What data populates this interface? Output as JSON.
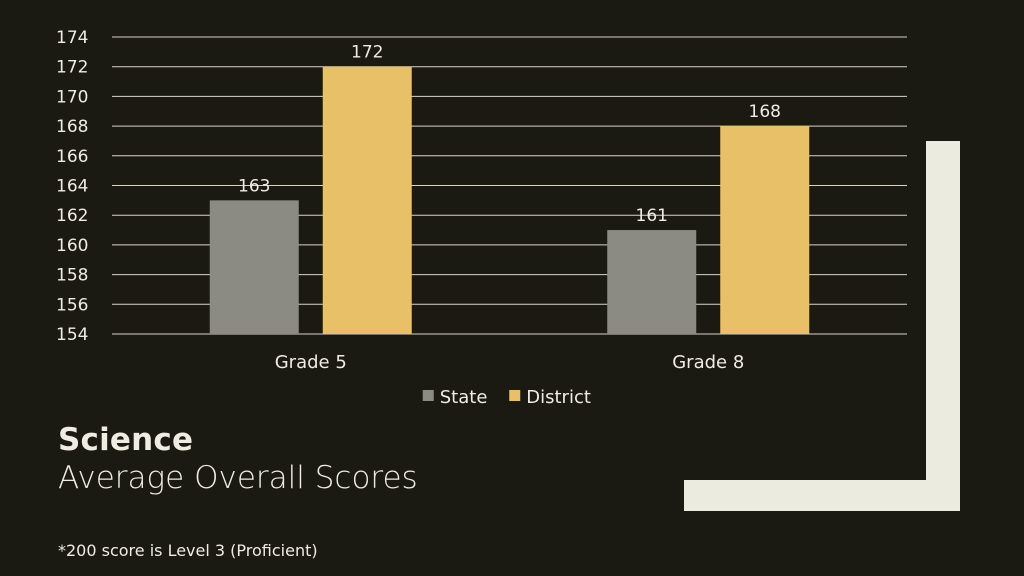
{
  "chart_data": {
    "type": "bar",
    "categories": [
      "Grade 5",
      "Grade 8"
    ],
    "series": [
      {
        "name": "State",
        "values": [
          163,
          161
        ],
        "color": "#8b8b84"
      },
      {
        "name": "District",
        "values": [
          172,
          168
        ],
        "color": "#e8c068"
      }
    ],
    "ylim": [
      154,
      174
    ],
    "yticks": [
      "154",
      "156",
      "158",
      "160",
      "162",
      "164",
      "166",
      "168",
      "170",
      "172",
      "174"
    ],
    "grid": true,
    "legend_position": "bottom",
    "data_labels": true
  },
  "heading": {
    "title": "Science",
    "subtitle": "Average Overall Scores"
  },
  "footnote": "*200 score is Level 3 (Proficient)",
  "colors": {
    "background": "#1b1a12",
    "text": "#efede2",
    "gridline": "#d7d4c8",
    "decoration": "#ecebe0"
  }
}
